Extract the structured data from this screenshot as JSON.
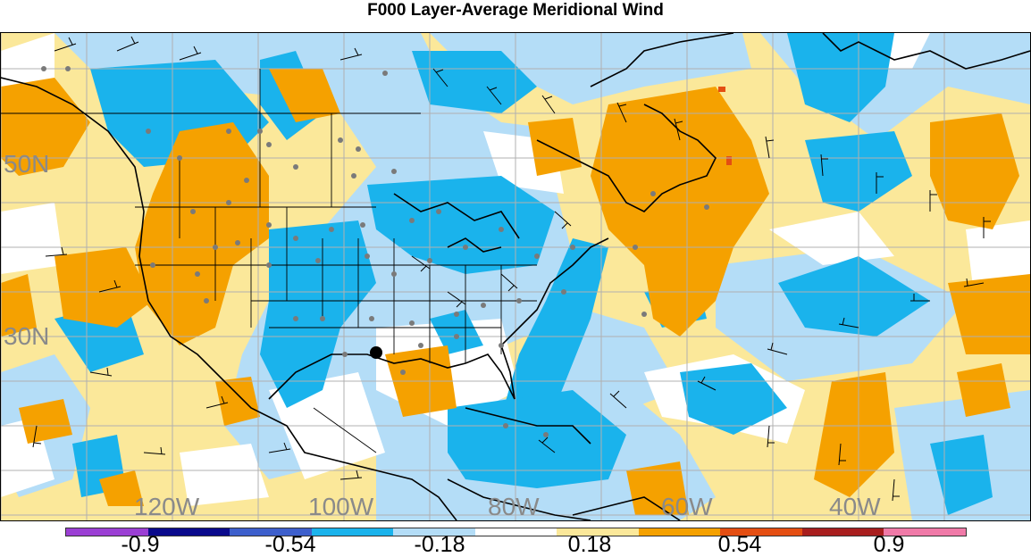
{
  "title": "F000 Layer-Average Meridional Wind",
  "lat_labels": [
    "50N",
    "30N"
  ],
  "lon_labels": [
    "120W",
    "100W",
    "80W",
    "60W",
    "40W"
  ],
  "colorbar": {
    "colors": [
      "#9b3fd4",
      "#0a0a8c",
      "#3d5fcc",
      "#1ab3ec",
      "#b4ddf7",
      "#ffffff",
      "#fbe89a",
      "#f5a100",
      "#e44e12",
      "#a81e1e",
      "#f07aa8"
    ],
    "labels": [
      "-0.9",
      "-0.54",
      "-0.18",
      "0.18",
      "0.54",
      "0.9"
    ]
  },
  "layers": {
    "positive_color": "#f5a100",
    "light_positive_color": "#fbe89a",
    "negative_color": "#1ab3ec",
    "light_negative_color": "#b4ddf7",
    "coast_color": "#000000",
    "grid_color": "#b0b0b0",
    "station_color": "#7a7a7a"
  }
}
